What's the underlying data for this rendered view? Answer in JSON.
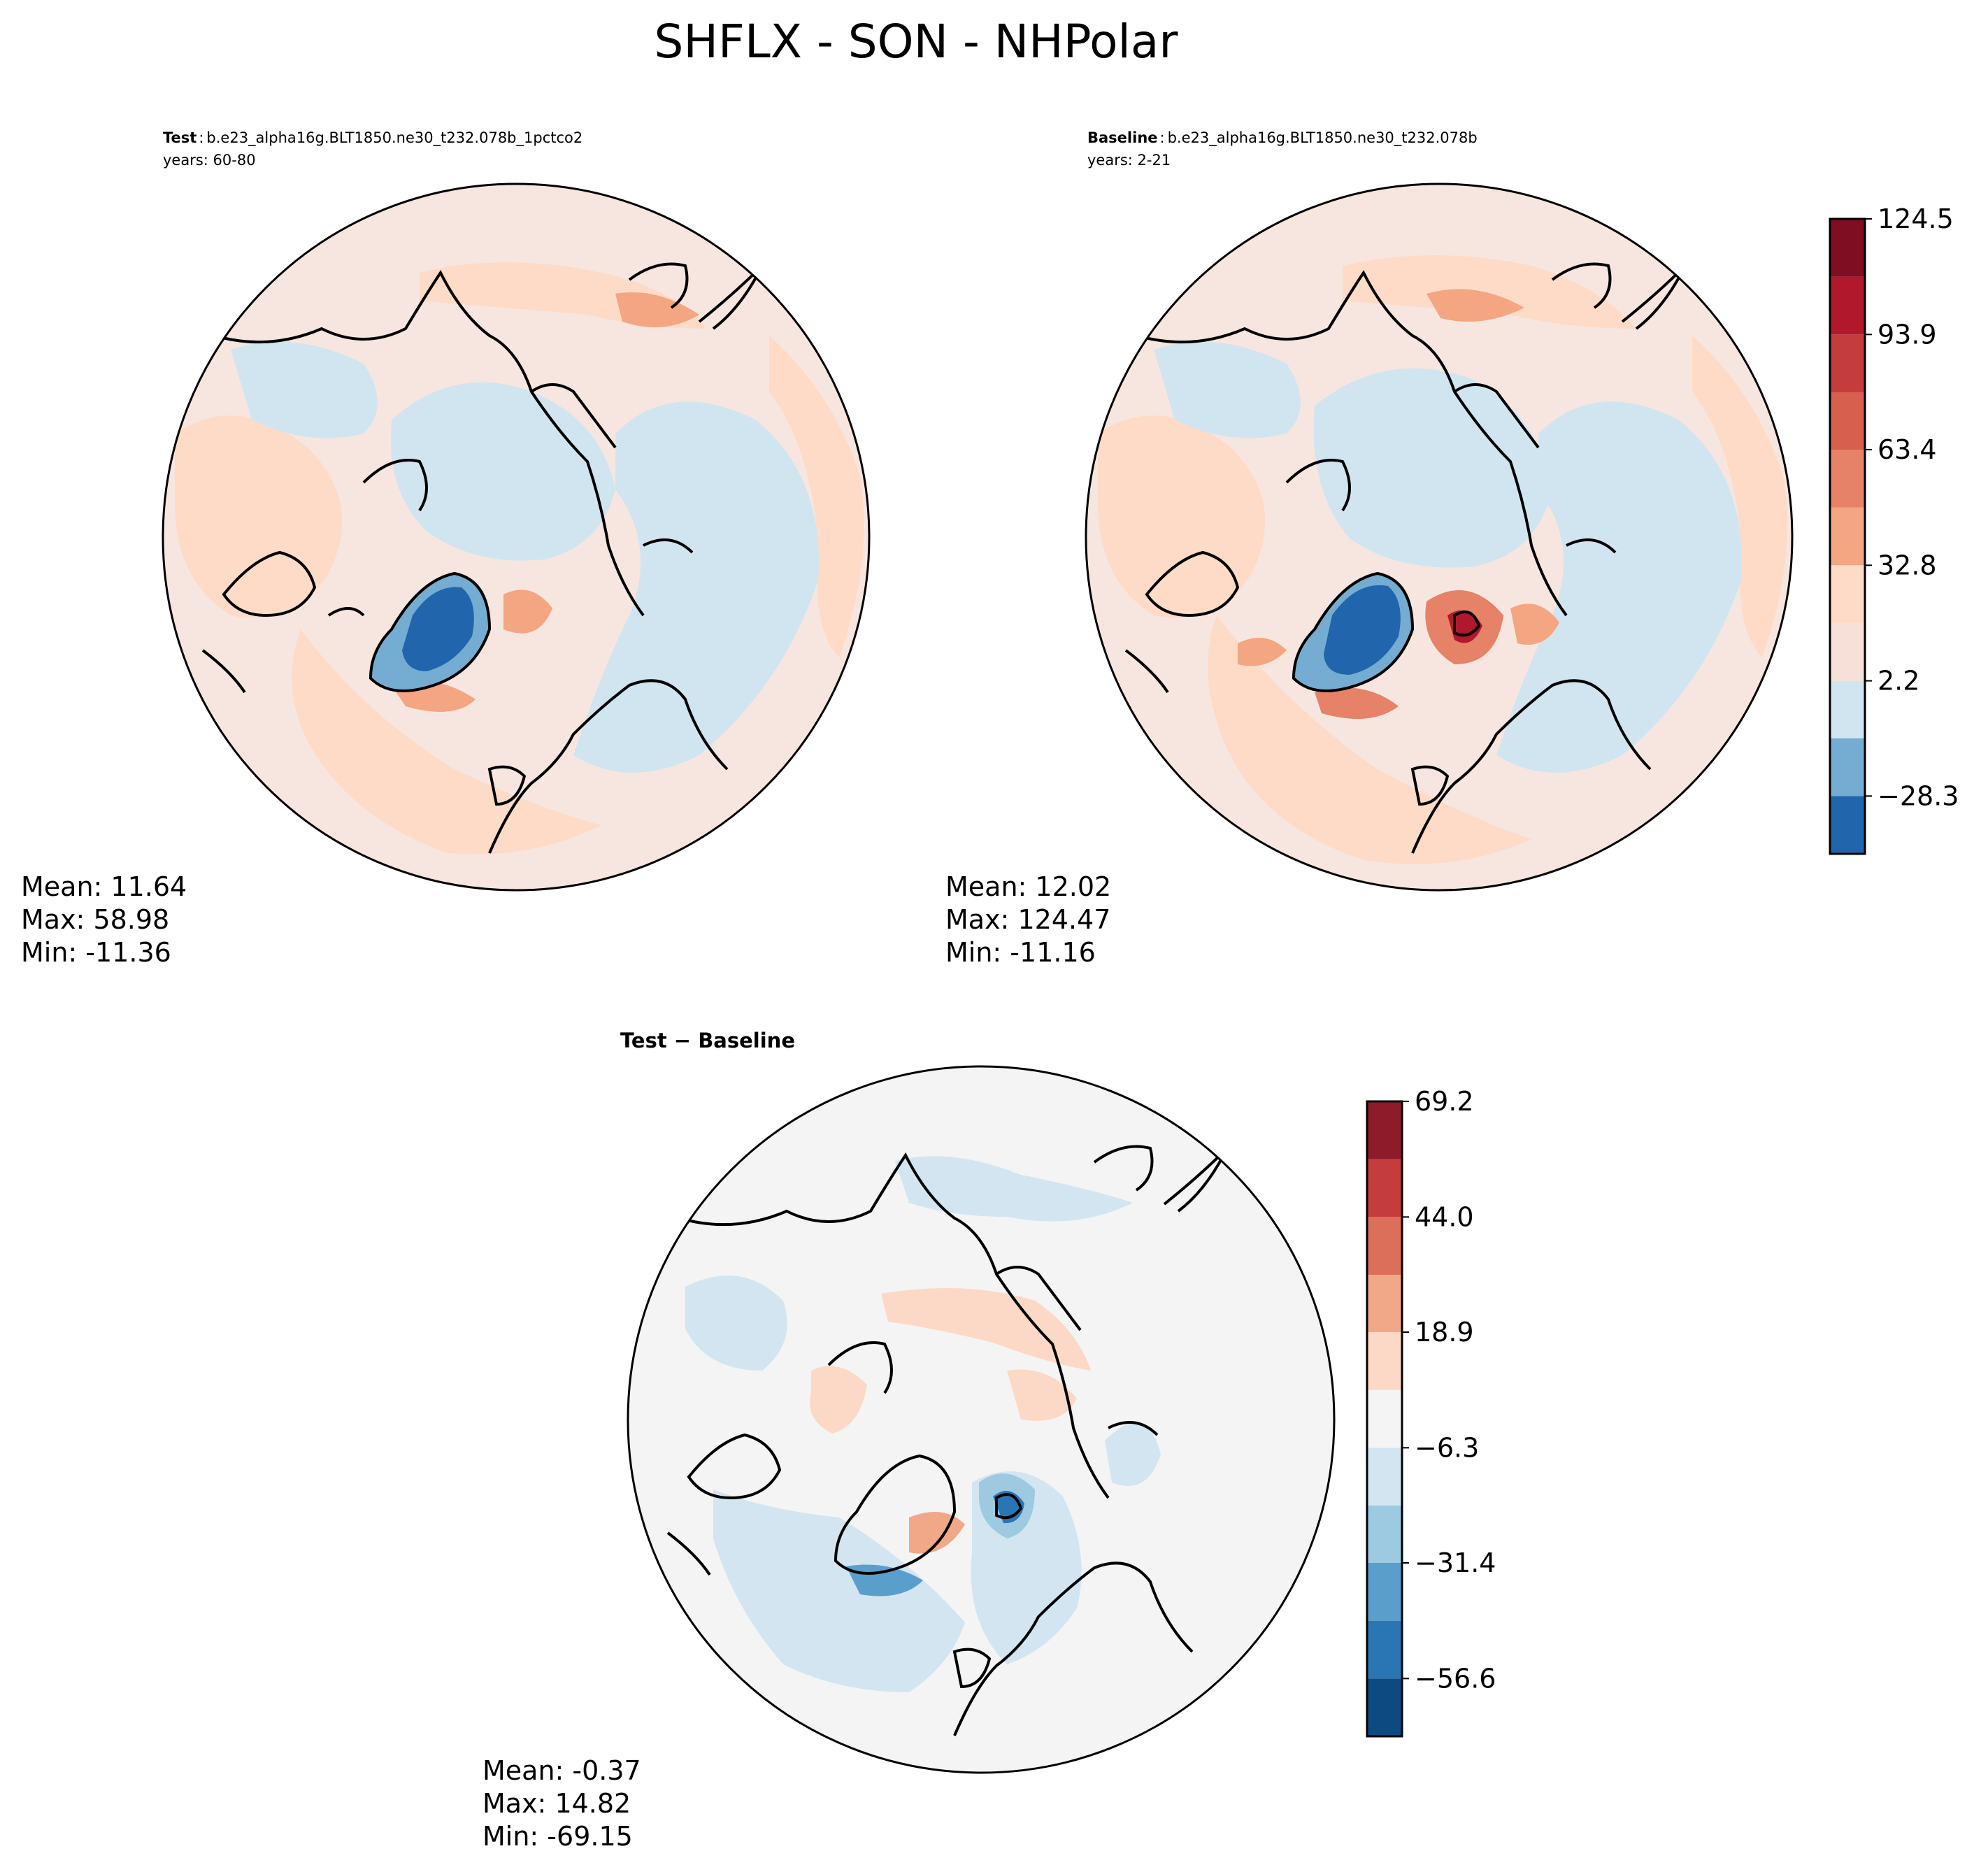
{
  "figure": {
    "title": "SHFLX - SON - NHPolar"
  },
  "chart_data": [
    {
      "type": "heatmap",
      "projection": "north-polar-stereographic",
      "label_bold": "Test",
      "label_sep": ":",
      "case_name": "b.e23_alpha16g.BLT1850.ne30_t232.078b_1pctco2",
      "years_line": "years: 60-80",
      "stats": {
        "mean_line": "Mean: 11.64",
        "max_line": "Max: 58.98",
        "min_line": "Min: -11.36",
        "mean": 11.64,
        "max": 58.98,
        "min": -11.36
      },
      "colorbar": "shared-top"
    },
    {
      "type": "heatmap",
      "projection": "north-polar-stereographic",
      "label_bold": "Baseline",
      "label_sep": ":",
      "case_name": "b.e23_alpha16g.BLT1850.ne30_t232.078b",
      "years_line": "years: 2-21",
      "stats": {
        "mean_line": "Mean: 12.02",
        "max_line": "Max: 124.47",
        "min_line": "Min: -11.16",
        "mean": 12.02,
        "max": 124.47,
        "min": -11.16
      },
      "colorbar": "shared-top"
    },
    {
      "type": "heatmap",
      "projection": "north-polar-stereographic",
      "title": "Test − Baseline",
      "stats": {
        "mean_line": "Mean: -0.37",
        "max_line": "Max: 14.82",
        "min_line": "Min: -69.15",
        "mean": -0.37,
        "max": 14.82,
        "min": -69.15
      },
      "colorbar": "diff"
    }
  ],
  "colorbars": {
    "top": {
      "range": [
        -43.6,
        124.5
      ],
      "levels": [
        -43.6,
        -28.3,
        -13.0,
        2.2,
        17.5,
        32.8,
        48.1,
        63.4,
        78.6,
        93.9,
        109.2,
        124.5
      ],
      "colors": [
        "#2166ac",
        "#74add1",
        "#d1e5f0",
        "#f7e0d7",
        "#fddbc7",
        "#f4a582",
        "#e58267",
        "#d6604d",
        "#c43c3c",
        "#b2182b",
        "#7f0e23"
      ],
      "tick_values": [
        -28.3,
        2.2,
        32.8,
        63.4,
        93.9,
        124.5
      ],
      "tick_labels": [
        "−28.3",
        "2.2",
        "32.8",
        "63.4",
        "93.9",
        "124.5"
      ]
    },
    "diff": {
      "range": [
        -69.2,
        69.2
      ],
      "levels": [
        -69.2,
        -56.6,
        -44.0,
        -31.4,
        -18.9,
        -6.3,
        6.3,
        18.9,
        31.4,
        44.0,
        56.6,
        69.2
      ],
      "colors": [
        "#0e4a82",
        "#2a75b4",
        "#5a9ecc",
        "#9dc9e1",
        "#d3e5f1",
        "#f4f4f4",
        "#fcd9c6",
        "#f1a889",
        "#dc6f5a",
        "#c43c3c",
        "#8e1b2a"
      ],
      "tick_values": [
        -56.6,
        -31.4,
        -6.3,
        18.9,
        44.0,
        69.2
      ],
      "tick_labels": [
        "−56.6",
        "−31.4",
        "−6.3",
        "18.9",
        "44.0",
        "69.2"
      ]
    }
  },
  "colors": {
    "background_top": "#f7e6df",
    "background_diff": "#f5f5f5",
    "coast": "#000000"
  }
}
